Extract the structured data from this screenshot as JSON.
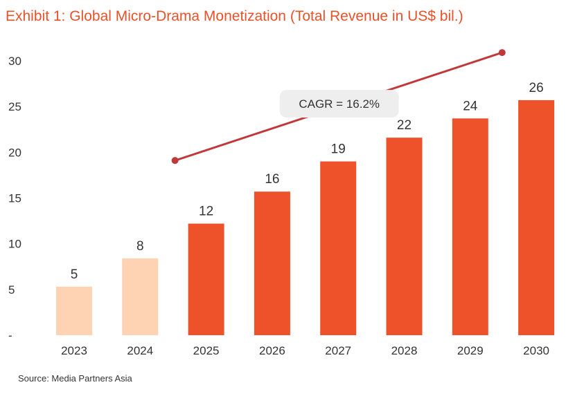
{
  "title": "Exhibit 1: Global Micro-Drama Monetization (Total Revenue in US$ bil.)",
  "source": "Source: Media Partners Asia",
  "colors": {
    "actual": "#fdd3b3",
    "forecast": "#ee522a",
    "trend": "#c0393a",
    "title": "#e8522a",
    "label_box": "#eeeeee"
  },
  "chart_data": {
    "type": "bar",
    "title": "Exhibit 1: Global Micro-Drama Monetization (Total Revenue in US$ bil.)",
    "xlabel": "",
    "ylabel": "",
    "ylim": [
      0,
      30
    ],
    "y_ticks": [
      0,
      5,
      10,
      15,
      20,
      25,
      30
    ],
    "y_tick_labels": [
      "-",
      "5",
      "10",
      "15",
      "20",
      "25",
      "30"
    ],
    "categories": [
      "2023",
      "2024",
      "2025",
      "2026",
      "2027",
      "2028",
      "2029",
      "2030"
    ],
    "values": [
      5.3,
      8.4,
      12.2,
      15.7,
      19.0,
      21.6,
      23.7,
      25.7
    ],
    "labels": [
      "5",
      "8",
      "12",
      "16",
      "19",
      "22",
      "24",
      "26"
    ],
    "bar_kind": [
      "actual",
      "actual",
      "forecast",
      "forecast",
      "forecast",
      "forecast",
      "forecast",
      "forecast"
    ],
    "trend_arrow": {
      "label": "CAGR = 16.2%",
      "start": {
        "x": "2025",
        "y": 19.1
      },
      "end": {
        "x": "2029",
        "y": 30.9
      }
    },
    "grid": false,
    "legend": "none"
  }
}
